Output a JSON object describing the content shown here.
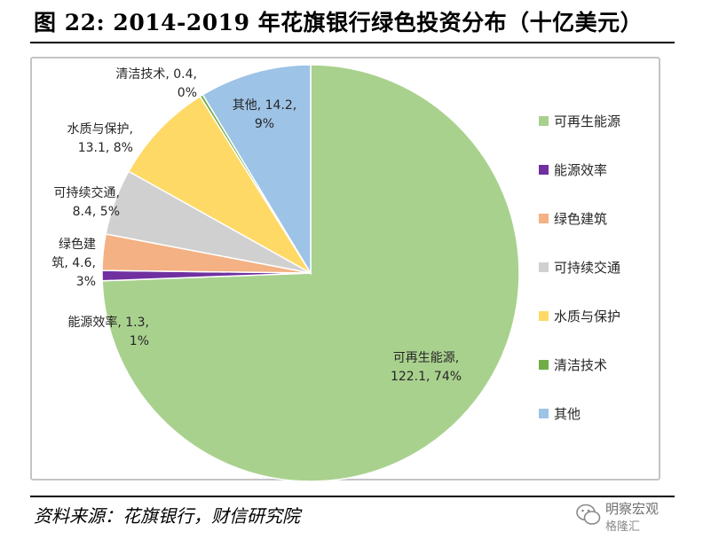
{
  "figure": {
    "title": "图 22: 2014-2019 年花旗银行绿色投资分布（十亿美元）",
    "source": "资料来源：花旗银行，财信研究院"
  },
  "watermark": {
    "line1": "明察宏观",
    "line2": "格隆汇"
  },
  "colors": {
    "rule": "#000000",
    "frame_border": "#c4c4c4",
    "slice_outline": "#ffffff"
  },
  "chart_data": {
    "type": "pie",
    "title": "",
    "start_direction": "12 o'clock, clockwise",
    "legend_position": "right",
    "slices": [
      {
        "name": "可再生能源",
        "value": 122.1,
        "percent": "74%",
        "color": "#a9d18e",
        "label_lines": [
          "可再生能源,",
          "122.1, 74%"
        ]
      },
      {
        "name": "能源效率",
        "value": 1.3,
        "percent": "1%",
        "color": "#7030a0",
        "label_lines": [
          "能源效率, 1.3,",
          "1%"
        ]
      },
      {
        "name": "绿色建筑",
        "value": 4.6,
        "percent": "3%",
        "color": "#f4b183",
        "label_lines": [
          "绿色建",
          "筑, 4.6,",
          "3%"
        ]
      },
      {
        "name": "可持续交通",
        "value": 8.4,
        "percent": "5%",
        "color": "#d0d0d0",
        "label_lines": [
          "可持续交通,",
          "8.4, 5%"
        ]
      },
      {
        "name": "水质与保护",
        "value": 13.1,
        "percent": "8%",
        "color": "#ffd966",
        "label_lines": [
          "水质与保护,",
          "13.1, 8%"
        ]
      },
      {
        "name": "清洁技术",
        "value": 0.4,
        "percent": "0%",
        "color": "#70ad47",
        "label_lines": [
          "清洁技术, 0.4,",
          "0%"
        ]
      },
      {
        "name": "其他",
        "value": 14.2,
        "percent": "9%",
        "color": "#9dc3e6",
        "label_lines": [
          "其他, 14.2,",
          "9%"
        ]
      }
    ]
  }
}
